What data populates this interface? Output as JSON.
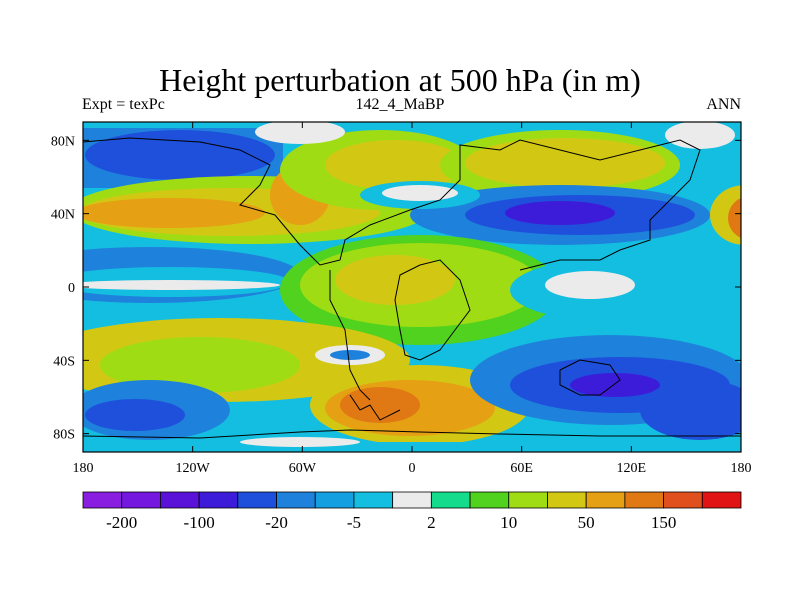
{
  "chart_data": {
    "type": "heatmap",
    "title": "Height perturbation at 500 hPa (in m)",
    "subtitle_left": "Expt = texPc",
    "subtitle_center": "142_4_MaBP",
    "subtitle_right": "ANN",
    "xlabel": "",
    "ylabel": "",
    "xlim": [
      -180,
      180
    ],
    "ylim": [
      -90,
      90
    ],
    "x_ticks": [
      -180,
      -120,
      -60,
      0,
      60,
      120,
      180
    ],
    "x_tick_labels": [
      "180",
      "120W",
      "60W",
      "0",
      "60E",
      "120E",
      "180"
    ],
    "y_ticks": [
      80,
      40,
      0,
      -40,
      -80
    ],
    "y_tick_labels": [
      "80N",
      "40N",
      "0",
      "40S",
      "80S"
    ],
    "colorbar": {
      "colors": [
        "#8A1EE0",
        "#7418E0",
        "#5A12D8",
        "#3C1CD8",
        "#1E50DC",
        "#1E82DC",
        "#14A0E0",
        "#14BEE0",
        "#EBEBEB",
        "#14DC8C",
        "#50D21E",
        "#A0DC14",
        "#D2C814",
        "#E6A014",
        "#E07814",
        "#E0501E",
        "#E01414"
      ],
      "labels": [
        "-200",
        "-100",
        "-20",
        "-5",
        "2",
        "10",
        "50",
        "150"
      ],
      "label_boundaries": [
        1,
        3,
        5,
        7,
        9,
        11,
        13,
        15
      ]
    }
  }
}
